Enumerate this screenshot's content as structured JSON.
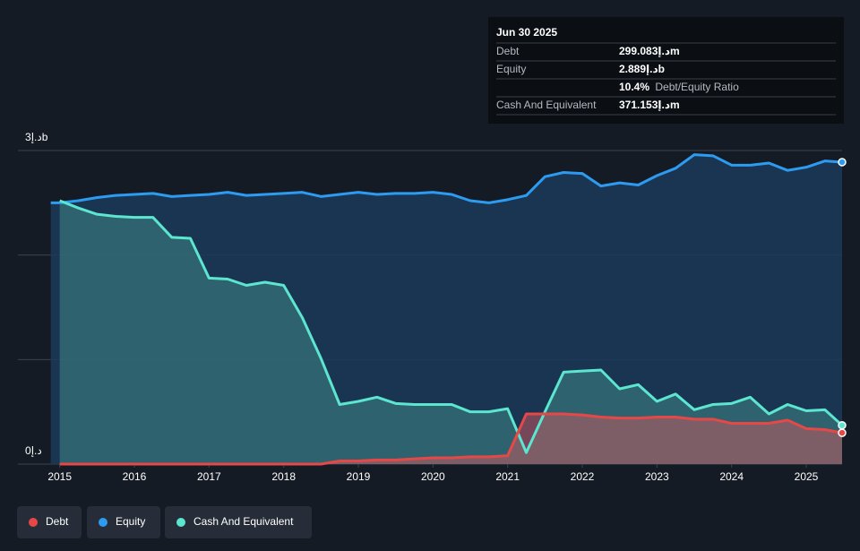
{
  "chart_data": {
    "type": "area",
    "x": [
      2014.88,
      2015.0,
      2015.25,
      2015.5,
      2015.75,
      2016.0,
      2016.25,
      2016.5,
      2016.75,
      2017.0,
      2017.25,
      2017.5,
      2017.75,
      2018.0,
      2018.25,
      2018.5,
      2018.75,
      2019.0,
      2019.25,
      2019.5,
      2019.75,
      2020.0,
      2020.25,
      2020.5,
      2020.75,
      2021.0,
      2021.25,
      2021.5,
      2021.75,
      2022.0,
      2022.25,
      2022.5,
      2022.75,
      2023.0,
      2023.25,
      2023.5,
      2023.75,
      2024.0,
      2024.25,
      2024.5,
      2024.75,
      2025.0,
      2025.25,
      2025.48
    ],
    "series": [
      {
        "name": "Debt",
        "color": "#e64848",
        "fill": "#d05a5e",
        "values": [
          null,
          0,
          0,
          0,
          0,
          0,
          0,
          0,
          0,
          0,
          0,
          0,
          0,
          0,
          0,
          0,
          0.03,
          0.03,
          0.04,
          0.04,
          0.05,
          0.06,
          0.06,
          0.07,
          0.07,
          0.08,
          0.48,
          0.48,
          0.48,
          0.47,
          0.45,
          0.44,
          0.44,
          0.45,
          0.45,
          0.43,
          0.43,
          0.39,
          0.39,
          0.39,
          0.42,
          0.34,
          0.33,
          0.299083
        ]
      },
      {
        "name": "Equity",
        "color": "#2d9bf0",
        "fill": "#1b3a5a",
        "values": [
          2.5,
          2.5,
          2.52,
          2.55,
          2.57,
          2.58,
          2.59,
          2.56,
          2.57,
          2.58,
          2.6,
          2.57,
          2.58,
          2.59,
          2.6,
          2.56,
          2.58,
          2.6,
          2.58,
          2.59,
          2.59,
          2.6,
          2.58,
          2.52,
          2.5,
          2.53,
          2.57,
          2.75,
          2.79,
          2.78,
          2.66,
          2.69,
          2.67,
          2.76,
          2.83,
          2.96,
          2.95,
          2.86,
          2.86,
          2.88,
          2.81,
          2.84,
          2.9,
          2.889
        ]
      },
      {
        "name": "Cash And Equivalent",
        "color": "#5ce6d0",
        "fill": "#3f8f8a",
        "values": [
          null,
          2.52,
          2.45,
          2.39,
          2.37,
          2.36,
          2.36,
          2.17,
          2.16,
          1.78,
          1.77,
          1.71,
          1.74,
          1.71,
          1.4,
          1.01,
          0.57,
          0.6,
          0.64,
          0.58,
          0.57,
          0.57,
          0.57,
          0.5,
          0.5,
          0.53,
          0.11,
          0.5,
          0.88,
          0.89,
          0.9,
          0.72,
          0.76,
          0.6,
          0.67,
          0.52,
          0.57,
          0.58,
          0.64,
          0.48,
          0.57,
          0.51,
          0.52,
          0.371153
        ]
      }
    ],
    "xlim": [
      2014.44,
      2025.48
    ],
    "xticks": [
      2015,
      2016,
      2017,
      2018,
      2019,
      2020,
      2021,
      2022,
      2023,
      2024,
      2025
    ],
    "ylim": [
      0,
      3
    ],
    "yticks": [
      {
        "value": 0,
        "label": "0د.إ"
      },
      {
        "value": 1,
        "label": null
      },
      {
        "value": 2,
        "label": null
      },
      {
        "value": 3,
        "label": "3د.إb"
      }
    ],
    "grid": true,
    "tooltip": {
      "date": "Jun 30 2025",
      "debt": "299.083د.إm",
      "equity": "2.889د.إb",
      "ratio": "10.4%",
      "ratio_label": "Debt/Equity Ratio",
      "cash": "371.153د.إm"
    }
  }
}
